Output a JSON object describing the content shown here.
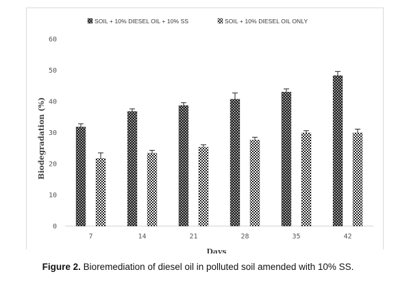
{
  "caption": {
    "label": "Figure 2.",
    "text": "Bioremediation of diesel oil in polluted soil amended with 10% SS."
  },
  "chart_data": {
    "type": "bar",
    "title": "",
    "xlabel": "Days",
    "ylabel": "Biodegradation (%)",
    "ylim": [
      0,
      60
    ],
    "yticks": [
      0,
      10,
      20,
      30,
      40,
      50,
      60
    ],
    "grid": false,
    "legend_position": "top",
    "categories": [
      "7",
      "14",
      "21",
      "28",
      "35",
      "42"
    ],
    "series": [
      {
        "name": "SOIL + 10% DIESEL OIL + 10% SS",
        "values": [
          31.8,
          36.8,
          38.7,
          40.7,
          43.0,
          48.3
        ],
        "errors": [
          1.0,
          0.8,
          0.9,
          2.0,
          1.0,
          1.3
        ],
        "color": "#222222",
        "pattern": "dense-checker"
      },
      {
        "name": "SOIL + 10% DIESEL OIL ONLY",
        "values": [
          21.7,
          23.4,
          25.3,
          27.6,
          29.9,
          29.9
        ],
        "errors": [
          1.8,
          0.9,
          0.8,
          0.9,
          0.7,
          1.2
        ],
        "color": "#222222",
        "pattern": "sparse-checker"
      }
    ]
  }
}
